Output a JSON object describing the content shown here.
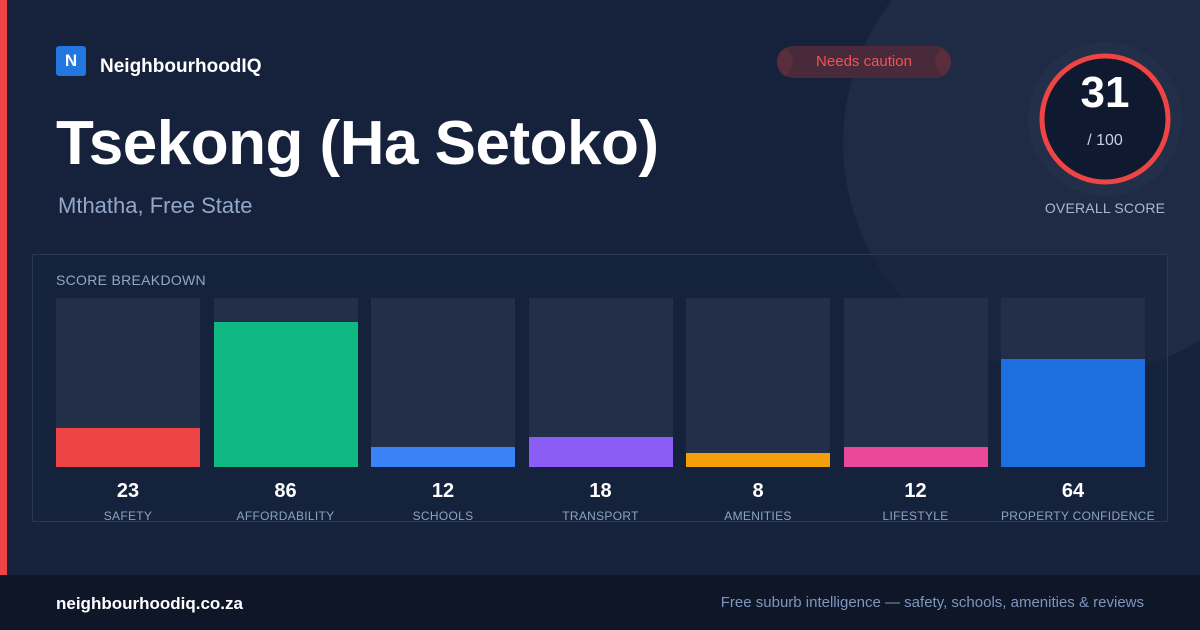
{
  "brand": {
    "logo_letter": "N",
    "name": "NeighbourhoodIQ"
  },
  "status_badge": {
    "label": "Needs caution",
    "color": "#f05454"
  },
  "suburb": {
    "name": "Tsekong (Ha Setoko)",
    "location": "Mthatha, Free State"
  },
  "overall": {
    "score": "31",
    "max_label": "/ 100",
    "label": "OVERALL SCORE",
    "score_value": 31,
    "score_max": 100,
    "ring_color": "#ef4444"
  },
  "breakdown": {
    "title": "SCORE BREAKDOWN",
    "categories": [
      {
        "label": "SAFETY",
        "value": "23",
        "score": 23,
        "color": "#ef4444"
      },
      {
        "label": "AFFORDABILITY",
        "value": "86",
        "score": 86,
        "color": "#10b981"
      },
      {
        "label": "SCHOOLS",
        "value": "12",
        "score": 12,
        "color": "#3b82f6"
      },
      {
        "label": "TRANSPORT",
        "value": "18",
        "score": 18,
        "color": "#8b5cf6"
      },
      {
        "label": "AMENITIES",
        "value": "8",
        "score": 8,
        "color": "#f59e0b"
      },
      {
        "label": "LIFESTYLE",
        "value": "12",
        "score": 12,
        "color": "#ec4899"
      },
      {
        "label": "PROPERTY CONFIDENCE",
        "value": "64",
        "score": 64,
        "color": "#1d6fe0"
      }
    ]
  },
  "footer": {
    "domain": "neighbourhoodiq.co.za",
    "tagline": "Free suburb intelligence — safety, schools, amenities & reviews"
  }
}
